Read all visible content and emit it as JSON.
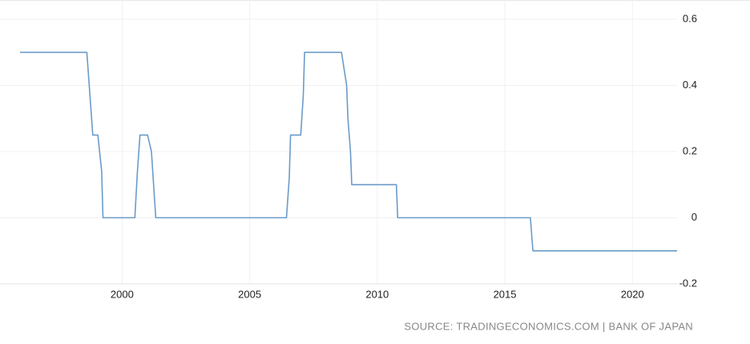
{
  "chart_data": {
    "type": "line",
    "x": [
      1996.0,
      1998.62,
      1998.85,
      1999.05,
      1999.2,
      1999.25,
      2000.5,
      2000.6,
      2000.7,
      2001.0,
      2001.15,
      2001.2,
      2001.32,
      2006.44,
      2006.55,
      2006.6,
      2007.0,
      2007.1,
      2007.15,
      2008.6,
      2008.8,
      2008.85,
      2008.95,
      2009.0,
      2010.75,
      2010.8,
      2016.0,
      2016.1,
      2021.75
    ],
    "series": [
      {
        "color": "#6b9bc9",
        "values": [
          0.5,
          0.5,
          0.25,
          0.25,
          0.14,
          0,
          0,
          0.14,
          0.25,
          0.25,
          0.2,
          0.14,
          0,
          0,
          0.12,
          0.25,
          0.25,
          0.37,
          0.5,
          0.5,
          0.4,
          0.3,
          0.2,
          0.1,
          0.1,
          0,
          0,
          -0.1,
          -0.1
        ]
      }
    ],
    "xlim": [
      1996.0,
      2021.75
    ],
    "xticks": [
      2000,
      2005,
      2010,
      2015,
      2020
    ],
    "ylim": [
      -0.2,
      0.6
    ],
    "yticks": [
      -0.2,
      0,
      0.2,
      0.4,
      0.6
    ],
    "grid": true,
    "source": "SOURCE: TRADINGECONOMICS.COM | BANK OF JAPAN"
  }
}
